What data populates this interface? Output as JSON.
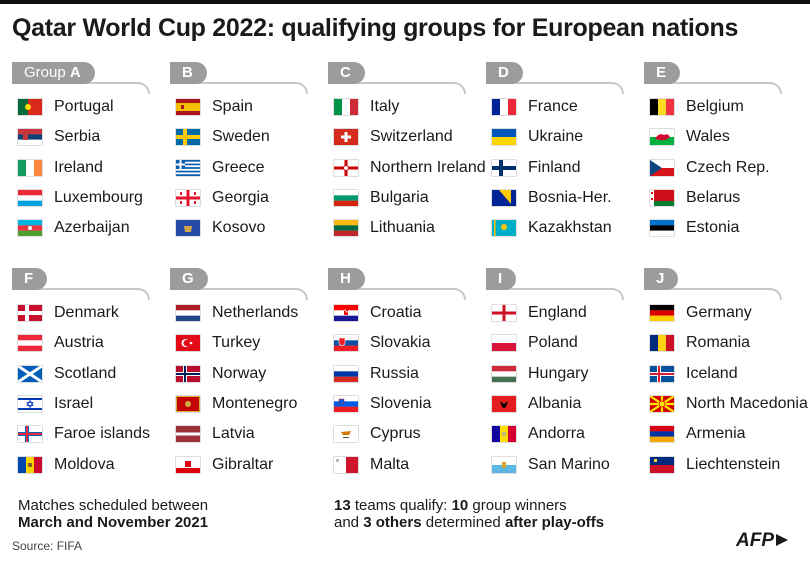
{
  "title": "Qatar World Cup 2022: qualifying groups for European nations",
  "groups": [
    {
      "prefix": "Group ",
      "letter": "A",
      "teams": [
        "Portugal",
        "Serbia",
        "Ireland",
        "Luxembourg",
        "Azerbaijan"
      ]
    },
    {
      "prefix": "",
      "letter": "B",
      "teams": [
        "Spain",
        "Sweden",
        "Greece",
        "Georgia",
        "Kosovo"
      ]
    },
    {
      "prefix": "",
      "letter": "C",
      "teams": [
        "Italy",
        "Switzerland",
        "Northern Ireland",
        "Bulgaria",
        "Lithuania"
      ]
    },
    {
      "prefix": "",
      "letter": "D",
      "teams": [
        "France",
        "Ukraine",
        "Finland",
        "Bosnia-Her.",
        "Kazakhstan"
      ]
    },
    {
      "prefix": "",
      "letter": "E",
      "teams": [
        "Belgium",
        "Wales",
        "Czech Rep.",
        "Belarus",
        "Estonia"
      ]
    },
    {
      "prefix": "",
      "letter": "F",
      "teams": [
        "Denmark",
        "Austria",
        "Scotland",
        "Israel",
        "Faroe islands",
        "Moldova"
      ]
    },
    {
      "prefix": "",
      "letter": "G",
      "teams": [
        "Netherlands",
        "Turkey",
        "Norway",
        "Montenegro",
        "Latvia",
        "Gibraltar"
      ]
    },
    {
      "prefix": "",
      "letter": "H",
      "teams": [
        "Croatia",
        "Slovakia",
        "Russia",
        "Slovenia",
        "Cyprus",
        "Malta"
      ]
    },
    {
      "prefix": "",
      "letter": "I",
      "teams": [
        "England",
        "Poland",
        "Hungary",
        "Albania",
        "Andorra",
        "San Marino"
      ]
    },
    {
      "prefix": "",
      "letter": "J",
      "teams": [
        "Germany",
        "Romania",
        "Iceland",
        "North Macedonia",
        "Armenia",
        "Liechtenstein"
      ]
    }
  ],
  "note_left": {
    "line1": "Matches scheduled between",
    "line2": "March and November 2021"
  },
  "note_right": {
    "n1": "13",
    "t1": " teams qualify: ",
    "n2": "10",
    "t2": " group winners",
    "t3": "and ",
    "n3": "3 others",
    "t4": " determined ",
    "t5": "after play-offs"
  },
  "source": "Source: FIFA",
  "logo": "AFP"
}
